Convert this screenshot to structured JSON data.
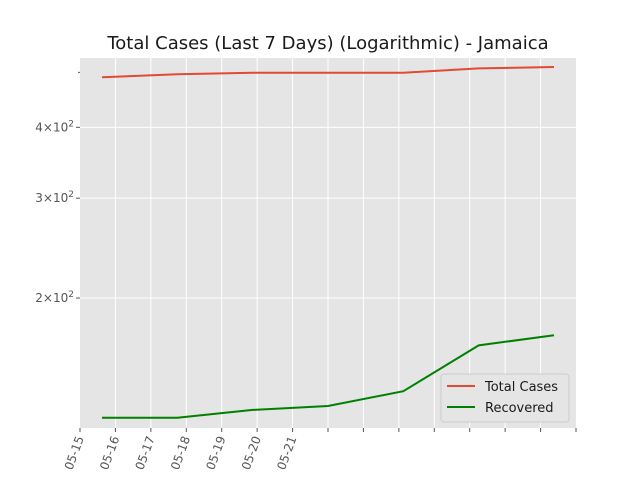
{
  "chart_data": {
    "type": "line",
    "title": "Total Cases (Last 7 Days) (Logarithmic) - Jamaica",
    "xlabel": "",
    "ylabel": "",
    "y_scale": "log",
    "ylim": [
      118,
      530
    ],
    "x_tick_labels": [
      "05-15",
      "05-16",
      "05-17",
      "05-18",
      "05-19",
      "05-20",
      "05-21"
    ],
    "y_ticks": [
      {
        "value": 200,
        "base": "2",
        "exp": "2"
      },
      {
        "value": 300,
        "base": "3",
        "exp": "2"
      },
      {
        "value": 400,
        "base": "4",
        "exp": "2"
      }
    ],
    "x": [
      "05-15",
      "05-16",
      "05-17",
      "05-18",
      "05-19",
      "05-20",
      "05-21"
    ],
    "series": [
      {
        "name": "Total Cases",
        "color": "#e24a33",
        "values": [
          490,
          496,
          499,
          499,
          499,
          508,
          511
        ]
      },
      {
        "name": "Recovered",
        "color": "#008000",
        "values": [
          123,
          123,
          127,
          129,
          137,
          165,
          172
        ]
      }
    ],
    "grid": true,
    "legend_position": "lower-right",
    "colors": {
      "background": "#e5e5e5",
      "grid": "#ffffff",
      "tick_text": "#555555"
    }
  }
}
